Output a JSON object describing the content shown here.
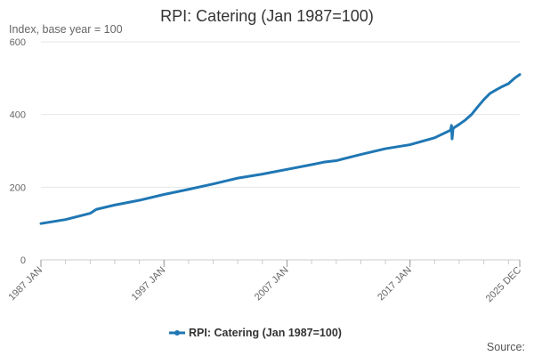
{
  "chart_data": {
    "type": "line",
    "title": "RPI: Catering (Jan 1987=100)",
    "subtitle": "Index, base year = 100",
    "xlabel": "",
    "ylabel": "",
    "x_ticks": [
      "1987 JAN",
      "1997 JAN",
      "2007 JAN",
      "2017 JAN",
      "2025 DEC"
    ],
    "y_ticks": [
      "0",
      "200",
      "400",
      "600"
    ],
    "ylim": [
      0,
      600
    ],
    "grid": true,
    "legend_position": "bottom",
    "source_label": "Source:",
    "colors": {
      "series": "#1f77b4",
      "grid": "#e6e6e6",
      "axis": "#cccccc"
    },
    "series": [
      {
        "name": "RPI: Catering (Jan 1987=100)",
        "x": [
          1987.0,
          1989.0,
          1991.0,
          1991.5,
          1993.0,
          1995.0,
          1997.0,
          1999.0,
          2001.0,
          2003.0,
          2005.0,
          2007.0,
          2009.0,
          2010.0,
          2011.0,
          2013.0,
          2015.0,
          2017.0,
          2019.0,
          2020.3,
          2020.37,
          2020.42,
          2020.5,
          2021.0,
          2021.5,
          2022.0,
          2022.5,
          2023.0,
          2023.5,
          2024.0,
          2024.5,
          2025.0,
          2025.5,
          2025.92
        ],
        "values": [
          100,
          111,
          128,
          139,
          151,
          164,
          180,
          194,
          209,
          225,
          236,
          249,
          262,
          269,
          273,
          290,
          306,
          317,
          336,
          357,
          370,
          333,
          362,
          373,
          385,
          400,
          421,
          441,
          458,
          468,
          477,
          485,
          500,
          510
        ]
      }
    ]
  }
}
